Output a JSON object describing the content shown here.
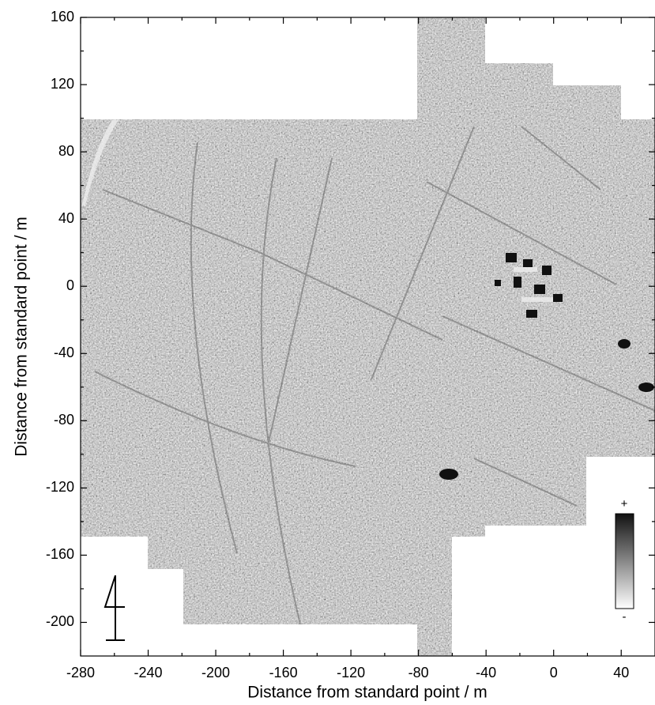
{
  "chart_data": {
    "type": "image",
    "xlabel": "Distance from standard point / m",
    "ylabel": "Distance from standard point / m",
    "xlim": [
      -280,
      60
    ],
    "ylim": [
      -220,
      160
    ],
    "xticks": [
      -280,
      -240,
      -200,
      -160,
      -120,
      -80,
      -40,
      0,
      40
    ],
    "yticks": [
      -200,
      -160,
      -120,
      -80,
      -40,
      0,
      40,
      80,
      120,
      160
    ],
    "colorbar": {
      "max_label": "+",
      "min_label": "-"
    }
  }
}
